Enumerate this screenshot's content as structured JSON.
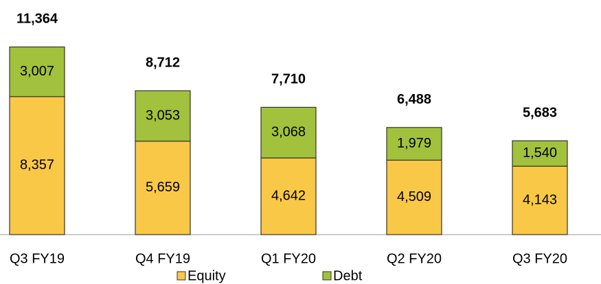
{
  "chart_data": {
    "type": "stacked_bar",
    "categories": [
      "Q3 FY19",
      "Q4 FY19",
      "Q1 FY20",
      "Q2 FY20",
      "Q3 FY20"
    ],
    "series": [
      {
        "name": "Equity",
        "color": "#f9c846",
        "values": [
          8357,
          5659,
          4642,
          4509,
          4143
        ],
        "value_labels": [
          "8,357",
          "5,659",
          "4,642",
          "4,509",
          "4,143"
        ]
      },
      {
        "name": "Debt",
        "color": "#a2c13c",
        "values": [
          3007,
          3053,
          3068,
          1979,
          1540
        ],
        "value_labels": [
          "3,007",
          "3,053",
          "3,068",
          "1,979",
          "1,540"
        ]
      }
    ],
    "totals": [
      11364,
      8712,
      7710,
      6488,
      5683
    ],
    "total_labels": [
      "11,364",
      "8,712",
      "7,710",
      "6,488",
      "5,683"
    ],
    "ylim": [
      0,
      14000
    ]
  }
}
